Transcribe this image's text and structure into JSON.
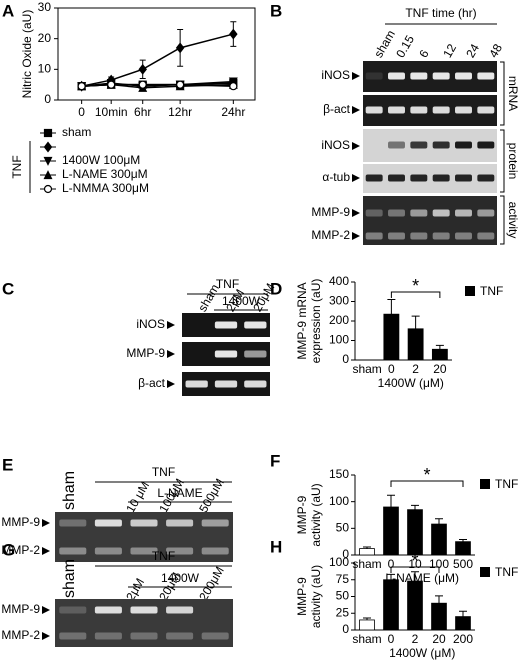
{
  "chart_data": [
    {
      "type": "line",
      "label": "A",
      "y_label": "Nitric Oxide (aU)",
      "categories": [
        "0",
        "10min",
        "6hr",
        "12hr",
        "24hr"
      ],
      "ylim": [
        0,
        30
      ],
      "yticks": [
        0,
        10,
        20,
        30
      ],
      "legend_group": "TNF",
      "series": [
        {
          "name": "sham",
          "marker": "square",
          "color": "#000000",
          "values": [
            4.5,
            5,
            5,
            5,
            5.5
          ]
        },
        {
          "marker": "diamond",
          "color": "#000000",
          "values": [
            4.5,
            6.5,
            10,
            17,
            21.5
          ],
          "errors": [
            0.5,
            1,
            3,
            6,
            4
          ]
        },
        {
          "name": "1400W 100μM",
          "marker": "triangle-down",
          "color": "#000000",
          "values": [
            4.5,
            5.5,
            4.5,
            5,
            6
          ]
        },
        {
          "name": "L-NAME 300μM",
          "marker": "triangle-up",
          "color": "#000000",
          "values": [
            4.5,
            5,
            4,
            4.5,
            5
          ]
        },
        {
          "name": "L-NMMA 300μM",
          "marker": "circle-open",
          "color": "#000000",
          "values": [
            4.5,
            5,
            5,
            5,
            4.5
          ]
        }
      ]
    },
    {
      "type": "bar",
      "label": "D",
      "y_label": [
        "MMP-9 mRNA",
        "expression (aU)"
      ],
      "x_label": "1400W (μM)",
      "categories": [
        "sham",
        "0",
        "2",
        "20"
      ],
      "values": [
        null,
        235,
        160,
        55
      ],
      "errors": [
        null,
        75,
        65,
        20
      ],
      "colors": [
        null,
        "#000000",
        "#000000",
        "#000000"
      ],
      "legend": "TNF",
      "legend_color": "#000000",
      "ylim": [
        0,
        400
      ],
      "yticks": [
        0,
        100,
        200,
        300,
        400
      ],
      "annotation": "*"
    },
    {
      "type": "bar",
      "label": "F",
      "y_label": [
        "MMP-9",
        "activity (aU)"
      ],
      "x_label": "L-NAME (μM)",
      "categories": [
        "sham",
        "0",
        "10",
        "100",
        "500"
      ],
      "values": [
        12,
        90,
        85,
        58,
        25
      ],
      "errors": [
        3,
        22,
        8,
        10,
        4
      ],
      "colors": [
        "#ffffff",
        "#000000",
        "#000000",
        "#000000",
        "#000000"
      ],
      "legend": "TNF",
      "legend_color": "#000000",
      "ylim": [
        0,
        150
      ],
      "yticks": [
        0,
        50,
        100,
        150
      ],
      "annotation": "*"
    },
    {
      "type": "bar",
      "label": "H",
      "y_label": [
        "MMP-9",
        "activity (aU)"
      ],
      "x_label": "1400W (μM)",
      "categories": [
        "sham",
        "0",
        "2",
        "20",
        "200"
      ],
      "values": [
        15,
        75,
        73,
        40,
        20
      ],
      "errors": [
        3,
        8,
        14,
        11,
        8
      ],
      "colors": [
        "#ffffff",
        "#000000",
        "#000000",
        "#000000",
        "#000000"
      ],
      "legend": "TNF",
      "legend_color": "#000000",
      "ylim": [
        0,
        100
      ],
      "yticks": [
        0,
        25,
        50,
        75,
        100
      ],
      "annotation": "*"
    }
  ],
  "gels": [
    {
      "label": "B",
      "headers": [
        "TNF time (hr)"
      ],
      "lanes": [
        "sham",
        "0.15",
        "6",
        "12",
        "24",
        "48"
      ],
      "rows": [
        "iNOS",
        "β-act",
        "iNOS",
        "α-tub",
        "MMP-9",
        "MMP-2"
      ],
      "groups": [
        "mRNA",
        "protein",
        "activity"
      ]
    },
    {
      "label": "C",
      "headers": [
        "TNF",
        "1400W"
      ],
      "lanes": [
        "sham",
        "2μM",
        "20μM"
      ],
      "rows": [
        "iNOS",
        "MMP-9",
        "β-act"
      ]
    },
    {
      "label": "E",
      "headers": [
        "TNF",
        "L-NAME"
      ],
      "lanes": [
        "sham",
        "10 μM",
        "100μM",
        "500μM"
      ],
      "rows": [
        "MMP-9",
        "MMP-2"
      ]
    },
    {
      "label": "G",
      "headers": [
        "TNF",
        "1400W"
      ],
      "lanes": [
        "sham",
        "2μM",
        "20μM",
        "200μM"
      ],
      "rows": [
        "MMP-9",
        "MMP-2"
      ]
    }
  ]
}
